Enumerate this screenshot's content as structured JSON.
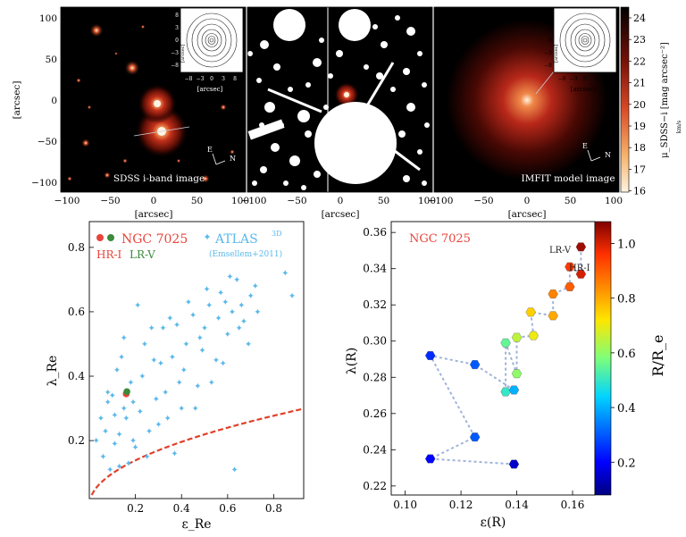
{
  "top": {
    "unit_x": "[arcsec]",
    "unit_y": "[arcsec]",
    "panel1_label": "SDSS i-band image",
    "panel3_label": "IMFIT model image",
    "inset_x": "[arcsec]",
    "inset_y": "[arcsec]",
    "compass_e": "E",
    "compass_n": "N",
    "x_ticks": [
      "−100",
      "−50",
      "0",
      "50",
      "100"
    ],
    "y_ticks": [
      "100",
      "50",
      "0",
      "−50",
      "−100"
    ],
    "inset_x_ticks": [
      "−8",
      "−3",
      "0",
      "3",
      "8"
    ],
    "inset_y_ticks": [
      "8",
      "3",
      "0",
      "−3",
      "−8"
    ],
    "colorbar": {
      "ticks": [
        "24",
        "23",
        "22",
        "21",
        "20",
        "19",
        "18",
        "17",
        "16"
      ],
      "label": "μ_SDSS−i [mag arcsec⁻²]",
      "side_unit": "km/s",
      "colors": [
        "#fff3e0",
        "#f6b26b",
        "#d94a26",
        "#7a1208",
        "#000000"
      ]
    }
  },
  "chart_data": [
    {
      "type": "scatter",
      "xlabel": "ε_Re",
      "ylabel": "λ_Re",
      "xlim": [
        0.0,
        0.93
      ],
      "ylim": [
        0.02,
        0.88
      ],
      "x_ticks": [
        0.2,
        0.4,
        0.6,
        0.8
      ],
      "y_ticks": [
        0.2,
        0.4,
        0.6,
        0.8
      ],
      "legend_position": "top-left",
      "legend": {
        "ngc": "NGC 7025",
        "hri": "HR-I",
        "lrv": "LR-V",
        "atlas": "ATLAS",
        "atlas_sup": "3D",
        "atlas_ref": "(Emsellem+2011)"
      },
      "colors": {
        "ngc": "#e8443a",
        "hri": "#e8443a",
        "lrv": "#3c8a3c",
        "atlas": "#5bb8ea",
        "curve": "#e0402a"
      },
      "ngc_points": [
        {
          "name": "HR-I",
          "x": 0.16,
          "y": 0.345
        },
        {
          "name": "LR-V",
          "x": 0.163,
          "y": 0.352
        }
      ],
      "atlas_points": [
        [
          0.05,
          0.27
        ],
        [
          0.06,
          0.15
        ],
        [
          0.08,
          0.32
        ],
        [
          0.09,
          0.11
        ],
        [
          0.1,
          0.34
        ],
        [
          0.11,
          0.28
        ],
        [
          0.13,
          0.22
        ],
        [
          0.14,
          0.46
        ],
        [
          0.15,
          0.3
        ],
        [
          0.17,
          0.13
        ],
        [
          0.19,
          0.2
        ],
        [
          0.2,
          0.18
        ],
        [
          0.22,
          0.29
        ],
        [
          0.24,
          0.5
        ],
        [
          0.26,
          0.23
        ],
        [
          0.28,
          0.45
        ],
        [
          0.3,
          0.25
        ],
        [
          0.32,
          0.55
        ],
        [
          0.33,
          0.35
        ],
        [
          0.36,
          0.46
        ],
        [
          0.38,
          0.56
        ],
        [
          0.4,
          0.3
        ],
        [
          0.42,
          0.5
        ],
        [
          0.45,
          0.59
        ],
        [
          0.47,
          0.37
        ],
        [
          0.5,
          0.55
        ],
        [
          0.52,
          0.62
        ],
        [
          0.55,
          0.45
        ],
        [
          0.57,
          0.66
        ],
        [
          0.6,
          0.53
        ],
        [
          0.62,
          0.6
        ],
        [
          0.64,
          0.7
        ],
        [
          0.67,
          0.57
        ],
        [
          0.7,
          0.65
        ],
        [
          0.73,
          0.6
        ],
        [
          0.85,
          0.72
        ],
        [
          0.88,
          0.65
        ],
        [
          0.63,
          0.11
        ],
        [
          0.08,
          0.35
        ],
        [
          0.12,
          0.42
        ],
        [
          0.15,
          0.52
        ],
        [
          0.18,
          0.38
        ],
        [
          0.21,
          0.62
        ],
        [
          0.25,
          0.15
        ],
        [
          0.29,
          0.33
        ],
        [
          0.34,
          0.27
        ],
        [
          0.37,
          0.16
        ],
        [
          0.41,
          0.42
        ],
        [
          0.46,
          0.3
        ],
        [
          0.49,
          0.48
        ],
        [
          0.53,
          0.38
        ],
        [
          0.58,
          0.44
        ],
        [
          0.61,
          0.71
        ],
        [
          0.66,
          0.62
        ],
        [
          0.69,
          0.5
        ],
        [
          0.03,
          0.2
        ],
        [
          0.07,
          0.23
        ],
        [
          0.11,
          0.19
        ],
        [
          0.13,
          0.12
        ],
        [
          0.16,
          0.27
        ],
        [
          0.19,
          0.32
        ],
        [
          0.23,
          0.4
        ],
        [
          0.27,
          0.55
        ],
        [
          0.31,
          0.44
        ],
        [
          0.35,
          0.58
        ],
        [
          0.39,
          0.38
        ],
        [
          0.43,
          0.63
        ],
        [
          0.48,
          0.52
        ],
        [
          0.51,
          0.67
        ],
        [
          0.56,
          0.58
        ],
        [
          0.59,
          0.63
        ],
        [
          0.65,
          0.55
        ],
        [
          0.72,
          0.68
        ]
      ],
      "curve": {
        "label": "",
        "fn": "0.31*sqrt(x)",
        "x_range": [
          0.01,
          0.93
        ]
      }
    },
    {
      "type": "scatter",
      "title": "NGC 7025",
      "xlabel": "ε(R)",
      "ylabel": "λ(R)",
      "xlim": [
        0.095,
        0.168
      ],
      "ylim": [
        0.215,
        0.366
      ],
      "x_ticks": [
        0.1,
        0.12,
        0.14,
        0.16
      ],
      "x_tick_labels": [
        "0.10",
        "0.12",
        "0.14",
        "0.16"
      ],
      "y_ticks": [
        0.22,
        0.24,
        0.26,
        0.28,
        0.3,
        0.32,
        0.34,
        0.36
      ],
      "y_tick_labels": [
        "0.22",
        "0.24",
        "0.26",
        "0.28",
        "0.30",
        "0.32",
        "0.34",
        "0.36"
      ],
      "colorbar": {
        "label": "R/R_e",
        "range": [
          0.08,
          1.08
        ],
        "ticks": [
          0.2,
          0.4,
          0.6,
          0.8,
          1.0
        ],
        "tick_labels": [
          "0.2",
          "0.4",
          "0.6",
          "0.8",
          "1.0"
        ]
      },
      "colors": {
        "title": "#e8443a",
        "path": "#9fb3d9"
      },
      "annotations": [
        "LR-V",
        "HR-I"
      ],
      "points": [
        {
          "x": 0.163,
          "y": 0.352,
          "r": 1.05
        },
        {
          "x": 0.163,
          "y": 0.337,
          "r": 1.0
        },
        {
          "x": 0.159,
          "y": 0.341,
          "r": 0.95
        },
        {
          "x": 0.159,
          "y": 0.33,
          "r": 0.9
        },
        {
          "x": 0.153,
          "y": 0.326,
          "r": 0.85
        },
        {
          "x": 0.153,
          "y": 0.314,
          "r": 0.8
        },
        {
          "x": 0.145,
          "y": 0.316,
          "r": 0.75
        },
        {
          "x": 0.146,
          "y": 0.303,
          "r": 0.7
        },
        {
          "x": 0.14,
          "y": 0.302,
          "r": 0.65
        },
        {
          "x": 0.14,
          "y": 0.282,
          "r": 0.6
        },
        {
          "x": 0.136,
          "y": 0.299,
          "r": 0.55
        },
        {
          "x": 0.136,
          "y": 0.272,
          "r": 0.5
        },
        {
          "x": 0.139,
          "y": 0.273,
          "r": 0.4
        },
        {
          "x": 0.125,
          "y": 0.287,
          "r": 0.3
        },
        {
          "x": 0.109,
          "y": 0.292,
          "r": 0.25
        },
        {
          "x": 0.125,
          "y": 0.247,
          "r": 0.3
        },
        {
          "x": 0.109,
          "y": 0.235,
          "r": 0.2
        },
        {
          "x": 0.139,
          "y": 0.232,
          "r": 0.15
        }
      ]
    }
  ]
}
